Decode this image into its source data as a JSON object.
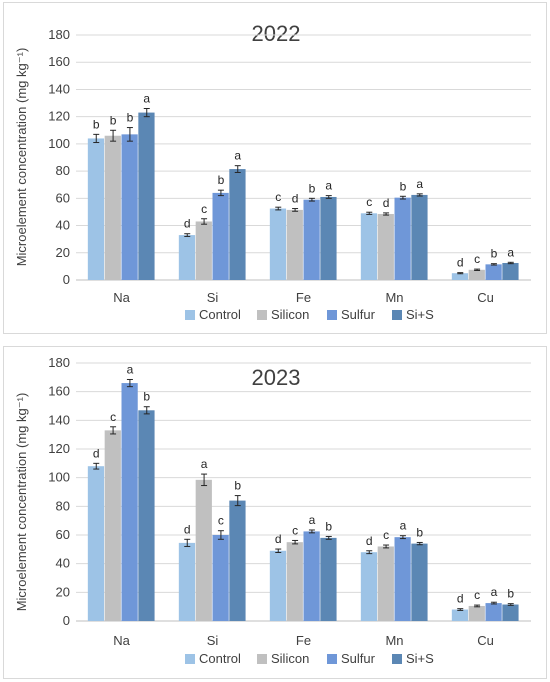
{
  "colors": {
    "control": "#9dc3e6",
    "silicon": "#c0c0c0",
    "sulfur": "#6f97d8",
    "si_s": "#5b87b4",
    "grid": "#d9d9d9",
    "text": "#404040"
  },
  "chart_data": [
    {
      "type": "bar",
      "title": "2022",
      "ylabel": "Microelement concentration (mg kg⁻¹)",
      "ylim": [
        0,
        180
      ],
      "yticks": [
        "0",
        "20",
        "40",
        "60",
        "80",
        "100",
        "120",
        "140",
        "160",
        "180"
      ],
      "categories": [
        "Na",
        "Si",
        "Fe",
        "Mn",
        "Cu"
      ],
      "error_bars": true,
      "legend_position": "bottom",
      "series": [
        {
          "name": "Control",
          "values": [
            104,
            33,
            52.5,
            49,
            5
          ],
          "errors": [
            3,
            1,
            1,
            0.8,
            0.4
          ],
          "letters": [
            "b",
            "d",
            "c",
            "c",
            "d"
          ]
        },
        {
          "name": "Silicon",
          "values": [
            106,
            43,
            51.5,
            48.5,
            7.5
          ],
          "errors": [
            4,
            2,
            1,
            0.8,
            0.5
          ],
          "letters": [
            "b",
            "c",
            "d",
            "d",
            "c"
          ]
        },
        {
          "name": "Sulfur",
          "values": [
            107,
            64,
            59,
            60.5,
            11.5
          ],
          "errors": [
            5,
            2,
            1,
            1,
            0.5
          ],
          "letters": [
            "b",
            "b",
            "b",
            "b",
            "b"
          ]
        },
        {
          "name": "Si+S",
          "values": [
            123,
            81.5,
            61,
            62.5,
            12.5
          ],
          "errors": [
            3,
            2.5,
            1,
            0.8,
            0.5
          ],
          "letters": [
            "a",
            "a",
            "a",
            "a",
            "a"
          ]
        }
      ]
    },
    {
      "type": "bar",
      "title": "2023",
      "ylabel": "Microelement concentration (mg kg⁻¹)",
      "ylim": [
        0,
        180
      ],
      "yticks": [
        "0",
        "20",
        "40",
        "60",
        "80",
        "100",
        "120",
        "140",
        "160",
        "180"
      ],
      "categories": [
        "Na",
        "Si",
        "Fe",
        "Mn",
        "Cu"
      ],
      "error_bars": true,
      "legend_position": "bottom",
      "series": [
        {
          "name": "Control",
          "values": [
            108,
            54.5,
            49,
            48,
            8
          ],
          "errors": [
            2,
            2.5,
            1.2,
            1,
            0.6
          ],
          "letters": [
            "d",
            "d",
            "d",
            "d",
            "d"
          ]
        },
        {
          "name": "Silicon",
          "values": [
            133,
            98.5,
            55,
            52,
            10.5
          ],
          "errors": [
            2.5,
            4,
            1.2,
            1,
            0.6
          ],
          "letters": [
            "c",
            "a",
            "c",
            "c",
            "c"
          ]
        },
        {
          "name": "Sulfur",
          "values": [
            166,
            60,
            62.5,
            58.5,
            12.5
          ],
          "errors": [
            2.5,
            3,
            1,
            1,
            0.6
          ],
          "letters": [
            "a",
            "c",
            "a",
            "a",
            "a"
          ]
        },
        {
          "name": "Si+S",
          "values": [
            147,
            84,
            58,
            54,
            11.5
          ],
          "errors": [
            2.5,
            3.5,
            1,
            0.8,
            0.6
          ],
          "letters": [
            "b",
            "b",
            "b",
            "b",
            "b"
          ]
        }
      ]
    }
  ]
}
